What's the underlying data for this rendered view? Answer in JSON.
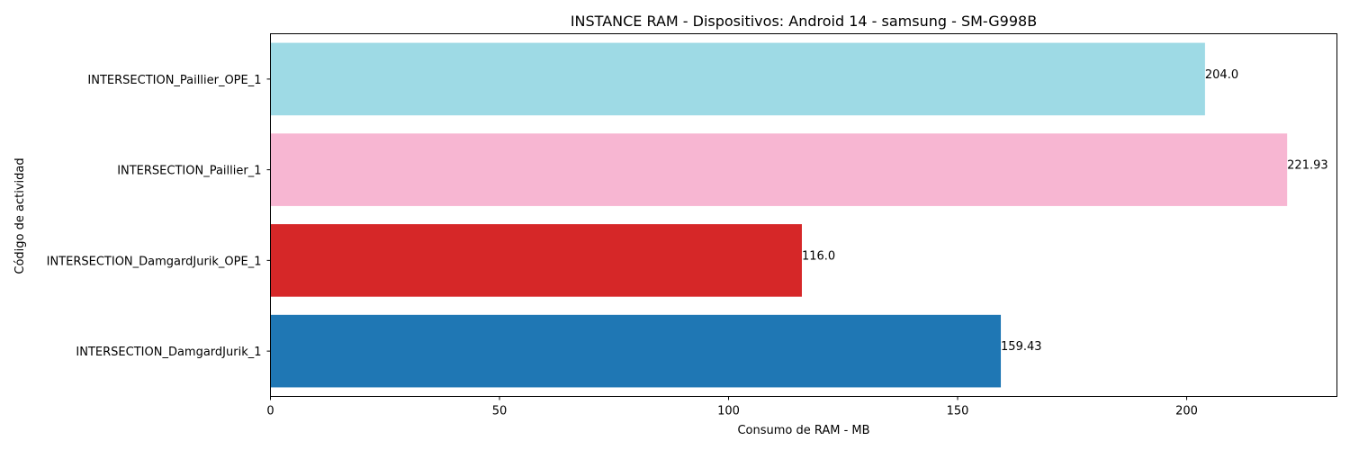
{
  "chart_data": {
    "type": "bar",
    "orientation": "horizontal",
    "title": "INSTANCE RAM - Dispositivos: Android 14 - samsung - SM-G998B",
    "xlabel": "Consumo de RAM - MB",
    "ylabel": "Código de actividad",
    "xlim": [
      0,
      232.8
    ],
    "xticks": [
      0,
      50,
      100,
      150,
      200
    ],
    "grid": false,
    "categories": [
      "INTERSECTION_Paillier_OPE_1",
      "INTERSECTION_Paillier_1",
      "INTERSECTION_DamgardJurik_OPE_1",
      "INTERSECTION_DamgardJurik_1"
    ],
    "values": [
      204.0,
      221.93,
      116.0,
      159.43
    ],
    "value_labels": [
      "204.0",
      "221.93",
      "116.0",
      "159.43"
    ],
    "colors": [
      "#9edae5",
      "#f7b6d2",
      "#d62728",
      "#1f77b4"
    ]
  }
}
